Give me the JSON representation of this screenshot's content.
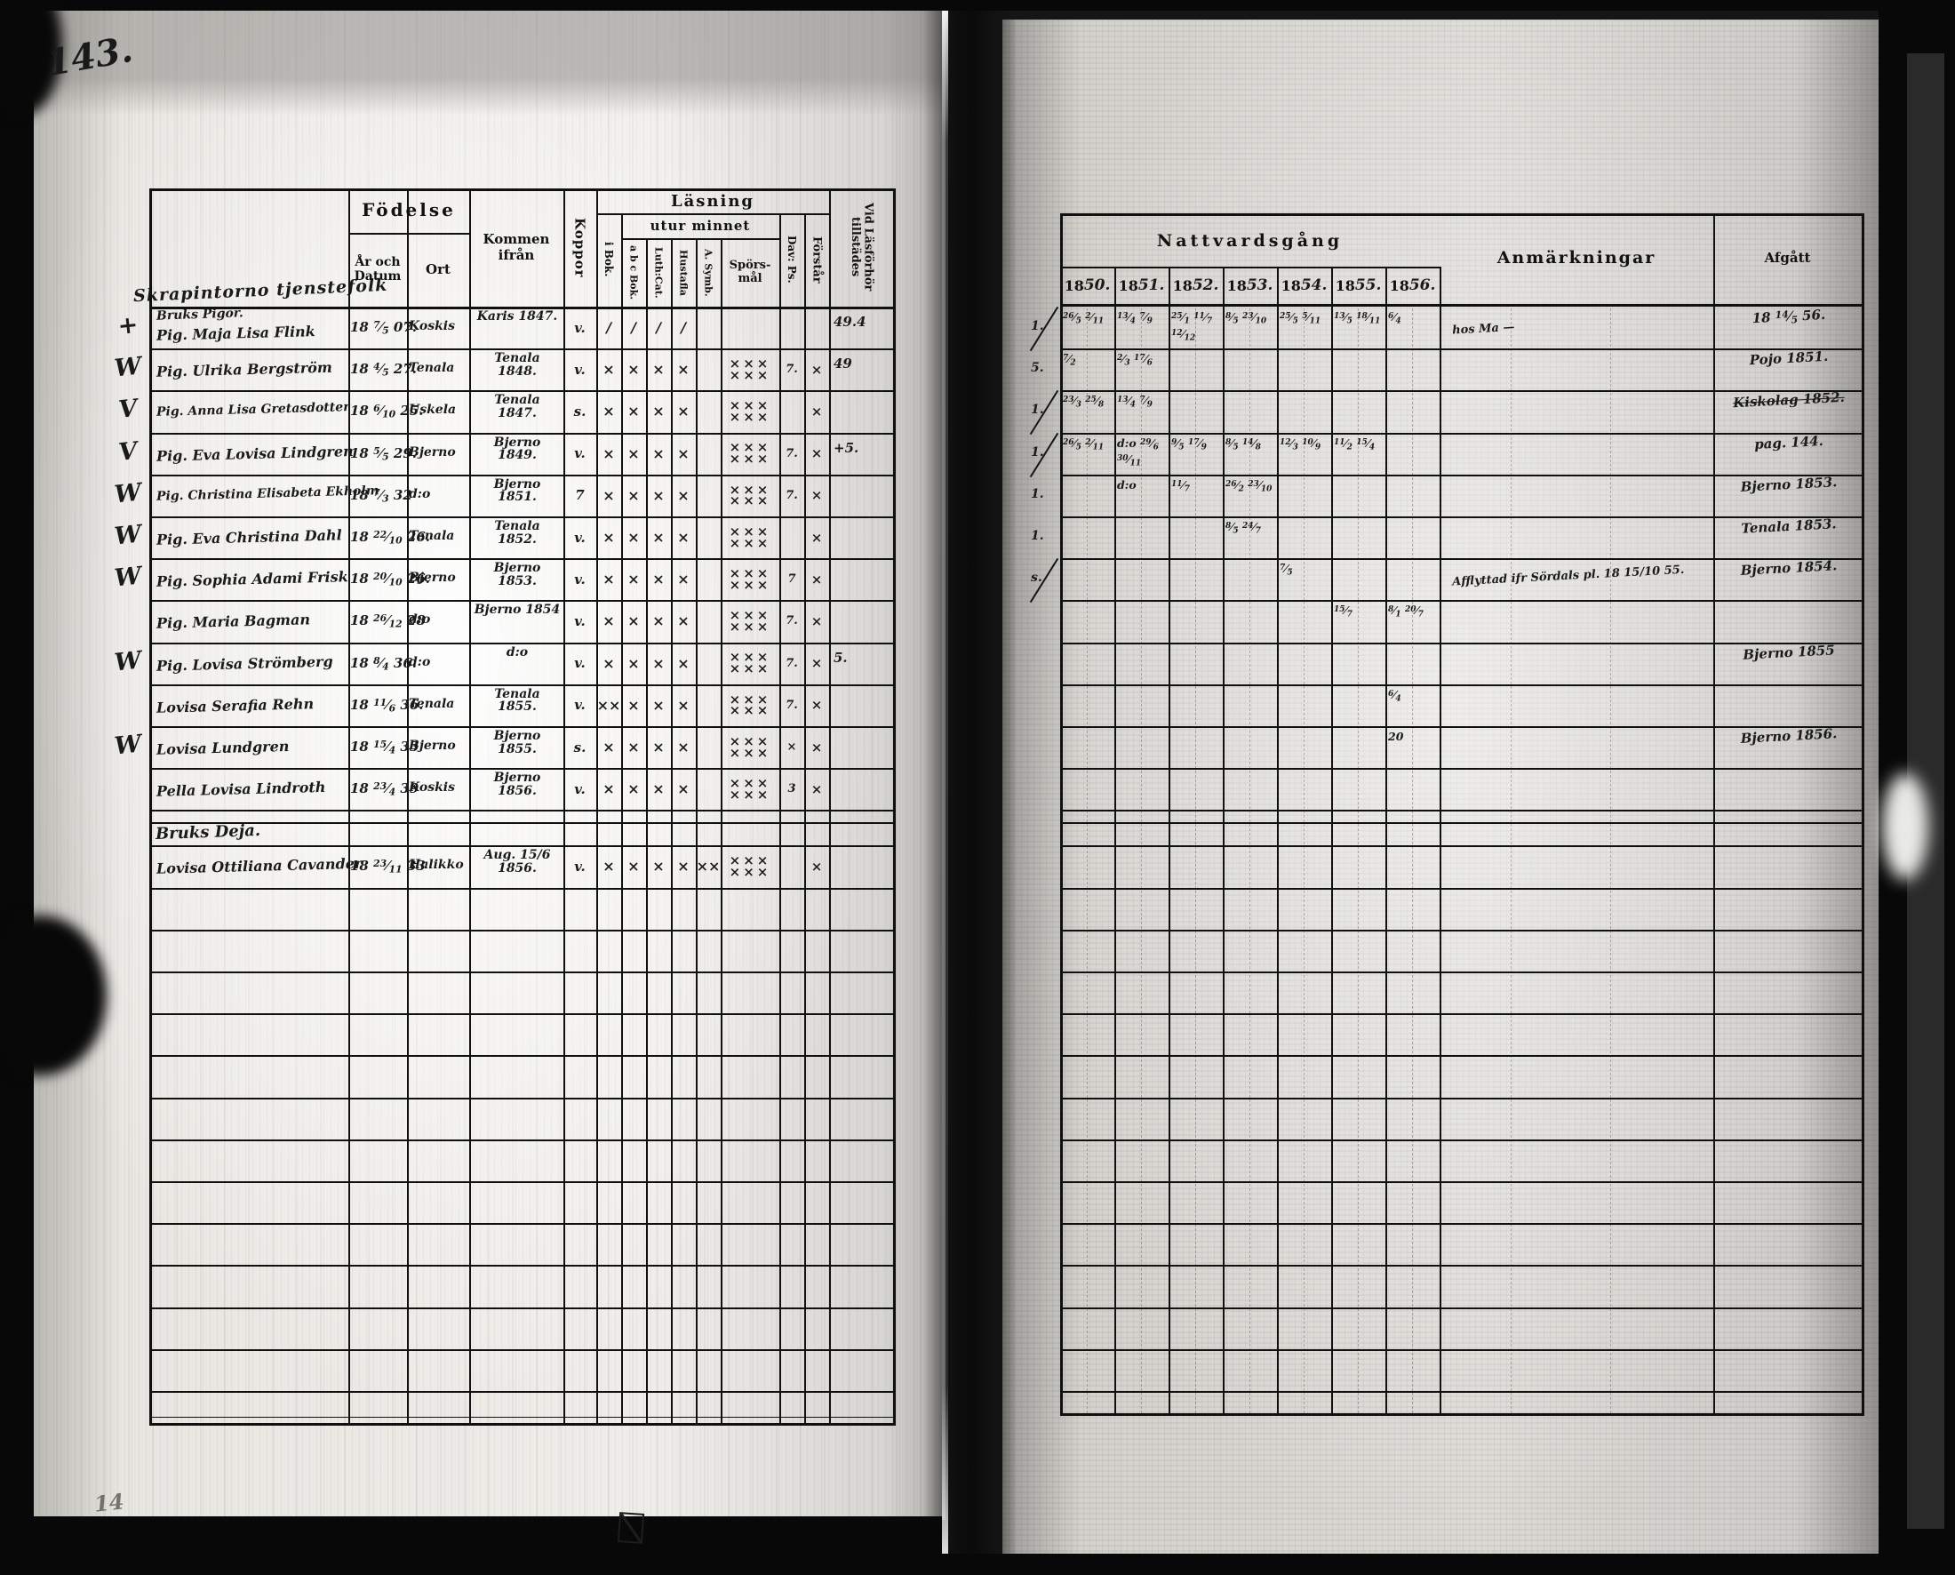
{
  "folio": "143.",
  "scribbles": {
    "bottom_left": "14",
    "heading_script": "Skrapintorno tjenstefolk"
  },
  "left_table": {
    "headers": {
      "fodelse": "Födelse",
      "ar_och_datum": "År och Datum",
      "ort": "Ort",
      "kommen_ifran": "Kommen ifrån",
      "koppor": "Koppor",
      "lasning": "Läsning",
      "i_bok": "i Bok.",
      "utur_minnet": "utur minnet",
      "abc_bok": "a b c Bok.",
      "luth_cat": "Luth:Cat.",
      "hustafla": "Hustafla",
      "a_symb": "A. Symb.",
      "sporsmal": "Spörs- mål",
      "dav_ps": "Dav: Ps.",
      "forstar": "Förstår",
      "vid_lasforhor": "Vid Läsförhör tillstädes"
    }
  },
  "right_table": {
    "title": "Nattvardsgång",
    "years": [
      "1850.",
      "1851.",
      "1852.",
      "1853.",
      "1854.",
      "1855.",
      "1856."
    ],
    "anmarkningar_label": "Anmärkningar",
    "afgatt_label": "Afgått"
  },
  "rows": [
    {
      "type": "person",
      "margin_left": "+",
      "overline": "Bruks Pigor.",
      "name": "Pig. Maja Lisa Flink",
      "born": "18 7/5 07.",
      "ort": "Koskis",
      "from": "Karis 1847.",
      "koppor": "v.",
      "books": [
        "∕",
        "∕",
        "∕",
        "∕",
        ""
      ],
      "sporsmal": "",
      "davps": "",
      "forstar": "",
      "tillstades": "49.4",
      "margin_right": "1.",
      "rm_slash": true,
      "communion": [
        "26/5 2/11",
        "13/4 7/9",
        "25/1 11/7 12/12",
        "8/5 23/10",
        "25/5 5/11",
        "13/5 18/11",
        "6/4"
      ],
      "anmarkning": "hos Ma —",
      "afgatt": "18 14/5 56.",
      "afgatt_struck": false
    },
    {
      "type": "person",
      "margin_left": "W",
      "overline": "",
      "name": "Pig. Ulrika Bergström",
      "born": "18 4/5 27.",
      "ort": "Tenala",
      "from": "Tenala 1848.",
      "koppor": "v.",
      "books": [
        "×",
        "×",
        "×",
        "×",
        ""
      ],
      "sporsmal": "××× ×××",
      "davps": "7.",
      "forstar": "×",
      "tillstades": "49",
      "margin_right": "5.",
      "rm_slash": false,
      "communion": [
        "7/2",
        "2/3 17/6",
        "",
        "",
        "",
        "",
        ""
      ],
      "anmarkning": "",
      "afgatt": "Pojo 1851.",
      "afgatt_struck": false
    },
    {
      "type": "person",
      "margin_left": "V",
      "overline": "",
      "name": "Pig. Anna Lisa Gretasdotter",
      "born": "18 6/10 25.",
      "ort": "Uskela",
      "from": "Tenala 1847.",
      "koppor": "s.",
      "books": [
        "×",
        "×",
        "×",
        "×",
        ""
      ],
      "sporsmal": "××× ×××",
      "davps": "",
      "forstar": "×",
      "tillstades": "",
      "margin_right": "1.",
      "rm_slash": true,
      "communion": [
        "23/3 25/8",
        "13/4 7/9",
        "",
        "",
        "",
        "",
        ""
      ],
      "anmarkning": "",
      "afgatt": "Kiskolag 1852.",
      "afgatt_struck": true
    },
    {
      "type": "person",
      "margin_left": "V",
      "overline": "",
      "name": "Pig. Eva Lovisa Lindgren",
      "born": "18 5/5 29.",
      "ort": "Bjerno",
      "from": "Bjerno 1849.",
      "koppor": "v.",
      "books": [
        "×",
        "×",
        "×",
        "×",
        ""
      ],
      "sporsmal": "××× ×××",
      "davps": "7.",
      "forstar": "×",
      "tillstades": "+5.",
      "margin_right": "1.",
      "rm_slash": true,
      "communion": [
        "26/5 2/11",
        "d:o 29/6 30/11",
        "9/5 17/9",
        "8/5 14/8",
        "12/3 10/9",
        "11/2 15/4",
        ""
      ],
      "anmarkning": "",
      "afgatt": "pag. 144.",
      "afgatt_struck": false
    },
    {
      "type": "person",
      "margin_left": "W",
      "overline": "",
      "name": "Pig. Christina Elisabeta Ekholm",
      "born": "18 7/3 32",
      "ort": "d:o",
      "from": "Bjerno 1851.",
      "koppor": "7",
      "books": [
        "×",
        "×",
        "×",
        "×",
        ""
      ],
      "sporsmal": "××× ×××",
      "davps": "7.",
      "forstar": "×",
      "tillstades": "",
      "margin_right": "1.",
      "rm_slash": false,
      "communion": [
        "",
        "d:o",
        "11/7",
        "26/2 23/10",
        "",
        "",
        ""
      ],
      "anmarkning": "",
      "afgatt": "Bjerno 1853.",
      "afgatt_struck": false
    },
    {
      "type": "person",
      "margin_left": "W",
      "overline": "",
      "name": "Pig. Eva Christina Dahl",
      "born": "18 22/10 26.",
      "ort": "Tenala",
      "from": "Tenala 1852.",
      "koppor": "v.",
      "books": [
        "×",
        "×",
        "×",
        "×",
        ""
      ],
      "sporsmal": "××× ×××",
      "davps": "",
      "forstar": "×",
      "tillstades": "",
      "margin_right": "1.",
      "rm_slash": false,
      "communion": [
        "",
        "",
        "",
        "8/5 24/7",
        "",
        "",
        ""
      ],
      "anmarkning": "",
      "afgatt": "Tenala 1853.",
      "afgatt_struck": false
    },
    {
      "type": "person",
      "margin_left": "W",
      "overline": "",
      "name": "Pig. Sophia Adami Frisk",
      "born": "18 20/10 26.",
      "ort": "Bjerno",
      "from": "Bjerno 1853.",
      "koppor": "v.",
      "books": [
        "×",
        "×",
        "×",
        "×",
        ""
      ],
      "sporsmal": "××× ×××",
      "davps": "7",
      "forstar": "×",
      "tillstades": "",
      "margin_right": "s.",
      "rm_slash": true,
      "communion": [
        "",
        "",
        "",
        "",
        "7/5",
        "",
        ""
      ],
      "anmarkning": "Afflyttad ifr Sördals pl. 18 15/10 55.",
      "afgatt": "Bjerno 1854.",
      "afgatt_struck": false
    },
    {
      "type": "person",
      "margin_left": "",
      "overline": "",
      "name": "Pig. Maria Bagman",
      "born": "18 26/12 28",
      "ort": "d:o",
      "from": "Bjerno 1854",
      "koppor": "v.",
      "books": [
        "×",
        "×",
        "×",
        "×",
        ""
      ],
      "sporsmal": "××× ×××",
      "davps": "7.",
      "forstar": "×",
      "tillstades": "",
      "margin_right": "",
      "rm_slash": false,
      "communion": [
        "",
        "",
        "",
        "",
        "",
        "15/7",
        "8/1 20/7"
      ],
      "anmarkning": "",
      "afgatt": "",
      "afgatt_struck": false
    },
    {
      "type": "person",
      "margin_left": "W",
      "overline": "",
      "name": "Pig. Lovisa Strömberg",
      "born": "18 8/4 36.",
      "ort": "d:o",
      "from": "d:o",
      "koppor": "v.",
      "books": [
        "×",
        "×",
        "×",
        "×",
        ""
      ],
      "sporsmal": "××× ×××",
      "davps": "7.",
      "forstar": "×",
      "tillstades": "5.",
      "margin_right": "",
      "rm_slash": false,
      "communion": [
        "",
        "",
        "",
        "",
        "",
        "",
        ""
      ],
      "anmarkning": "",
      "afgatt": "Bjerno 1855",
      "afgatt_struck": false
    },
    {
      "type": "person",
      "margin_left": "",
      "overline": "",
      "name": "Lovisa Serafia Rehn",
      "born": "18 11/6 36.",
      "ort": "Tenala",
      "from": "Tenala 1855.",
      "koppor": "v.",
      "books": [
        "××",
        "×",
        "×",
        "×",
        ""
      ],
      "sporsmal": "××× ×××",
      "davps": "7.",
      "forstar": "×",
      "tillstades": "",
      "margin_right": "",
      "rm_slash": false,
      "communion": [
        "",
        "",
        "",
        "",
        "",
        "",
        "6/4"
      ],
      "anmarkning": "",
      "afgatt": "",
      "afgatt_struck": false
    },
    {
      "type": "person",
      "margin_left": "W",
      "overline": "",
      "name": "Lovisa Lundgren",
      "born": "18 15/4 33",
      "ort": "Bjerno",
      "from": "Bjerno 1855.",
      "koppor": "s.",
      "books": [
        "×",
        "×",
        "×",
        "×",
        ""
      ],
      "sporsmal": "××× ×××",
      "davps": "×",
      "forstar": "×",
      "tillstades": "",
      "margin_right": "",
      "rm_slash": false,
      "communion": [
        "",
        "",
        "",
        "",
        "",
        "",
        "20"
      ],
      "anmarkning": "",
      "afgatt": "Bjerno 1856.",
      "afgatt_struck": false
    },
    {
      "type": "person",
      "margin_left": "",
      "overline": "",
      "name": "Pella Lovisa Lindroth",
      "born": "18 23/4 39",
      "ort": "Koskis",
      "from": "Bjerno 1856.",
      "koppor": "v.",
      "books": [
        "×",
        "×",
        "×",
        "×",
        ""
      ],
      "sporsmal": "××× ×××",
      "davps": "3",
      "forstar": "×",
      "tillstades": "",
      "margin_right": "",
      "rm_slash": false,
      "communion": [
        "",
        "",
        "",
        "",
        "",
        "",
        ""
      ],
      "anmarkning": "",
      "afgatt": "",
      "afgatt_struck": false
    },
    {
      "type": "blank"
    },
    {
      "type": "section",
      "label": "Bruks Deja."
    },
    {
      "type": "person",
      "margin_left": "",
      "overline": "",
      "name": "Lovisa Ottiliana Cavander",
      "born": "18 23/11 33",
      "ort": "Halikko",
      "from": "Aug. 15/6 1856.",
      "koppor": "v.",
      "books": [
        "×",
        "×",
        "×",
        "×",
        "××"
      ],
      "sporsmal": "××× ×××",
      "davps": "",
      "forstar": "×",
      "tillstades": "",
      "margin_right": "",
      "rm_slash": false,
      "communion": [
        "",
        "",
        "",
        "",
        "",
        "",
        ""
      ],
      "anmarkning": "",
      "afgatt": "",
      "afgatt_struck": false
    },
    {
      "type": "empty"
    },
    {
      "type": "empty"
    },
    {
      "type": "empty"
    },
    {
      "type": "empty"
    },
    {
      "type": "empty"
    },
    {
      "type": "empty"
    },
    {
      "type": "empty"
    },
    {
      "type": "empty"
    },
    {
      "type": "empty"
    },
    {
      "type": "empty"
    },
    {
      "type": "empty"
    },
    {
      "type": "empty"
    },
    {
      "type": "filler"
    }
  ]
}
